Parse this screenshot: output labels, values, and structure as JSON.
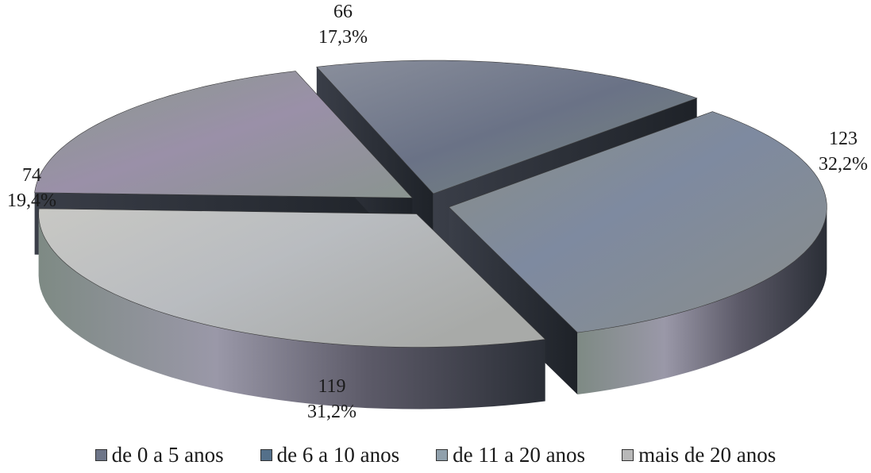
{
  "chart_data": {
    "type": "pie",
    "title": "",
    "three_d": true,
    "exploded": true,
    "categories": [
      "de 0 a 5 anos",
      "de 6 a 10 anos",
      "de 11 a 20 anos",
      "mais de 20 anos"
    ],
    "values": [
      66,
      123,
      119,
      74
    ],
    "percent_labels": [
      "17,3%",
      "32,2%",
      "31,2%",
      "19,4%"
    ],
    "value_labels": [
      "66",
      "123",
      "119",
      "74"
    ],
    "legend": {
      "position": "bottom",
      "entries": [
        "de 0 a 5 anos",
        "de 6 a 10 anos",
        "de 11 a 20 anos",
        "mais de 20 anos"
      ]
    },
    "colors": [
      "#6d7588",
      "#54708a",
      "#90a0ac",
      "#b8b8b8"
    ]
  }
}
